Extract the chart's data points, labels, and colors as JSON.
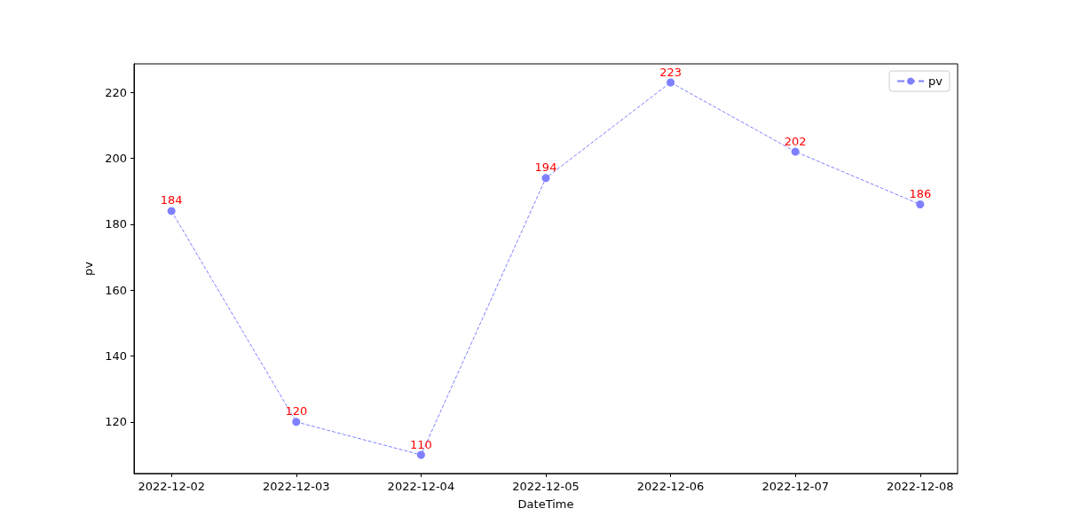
{
  "chart_data": {
    "type": "line",
    "xlabel": "DateTime",
    "ylabel": "pv",
    "x": [
      "2022-12-02",
      "2022-12-03",
      "2022-12-04",
      "2022-12-05",
      "2022-12-06",
      "2022-12-07",
      "2022-12-08"
    ],
    "series": [
      {
        "name": "pv",
        "color": "#7f7fff",
        "values": [
          184,
          120,
          110,
          194,
          223,
          202,
          186
        ]
      }
    ],
    "xlim": [
      "2022-12-01T16:48",
      "2022-12-08T07:12"
    ],
    "xticks": [
      "2022-12-02",
      "2022-12-03",
      "2022-12-04",
      "2022-12-05",
      "2022-12-06",
      "2022-12-07",
      "2022-12-08"
    ],
    "ylim": [
      104.35,
      228.65
    ],
    "yticks": [
      120,
      140,
      160,
      180,
      200,
      220
    ],
    "grid": false,
    "legend": "top right",
    "marker": "circle",
    "line_style": "dashed",
    "data_labels": true
  }
}
